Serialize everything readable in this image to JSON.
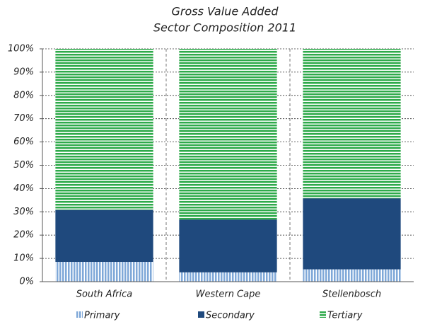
{
  "chart_data": {
    "type": "stacked_bar",
    "title": "Gross Value Added",
    "subtitle": "Sector Composition 2011",
    "categories": [
      "South Africa",
      "Western Cape",
      "Stellenbosch"
    ],
    "series": [
      {
        "name": "Primary",
        "color": "#7fa8d8",
        "hatch": "vertical",
        "values": [
          8.5,
          4,
          5.3
        ]
      },
      {
        "name": "Secondary",
        "color": "#1f497d",
        "values": [
          22.3,
          22.7,
          30.5
        ]
      },
      {
        "name": "Tertiary",
        "color": "#2eaa4a",
        "hatch": "horizontal",
        "values": [
          69.2,
          73.3,
          64.2
        ]
      }
    ],
    "ylim": [
      0,
      100
    ],
    "yticks": [
      {
        "value": 0,
        "label": "0%"
      },
      {
        "value": 10,
        "label": "10%"
      },
      {
        "value": 20,
        "label": "20%"
      },
      {
        "value": 30,
        "label": "30%"
      },
      {
        "value": 40,
        "label": "40%"
      },
      {
        "value": 50,
        "label": "50%"
      },
      {
        "value": 60,
        "label": "60%"
      },
      {
        "value": 70,
        "label": "70%"
      },
      {
        "value": 80,
        "label": "80%"
      },
      {
        "value": 90,
        "label": "90%"
      },
      {
        "value": 100,
        "label": "100%"
      }
    ],
    "grid": true,
    "legend": "bottom"
  }
}
